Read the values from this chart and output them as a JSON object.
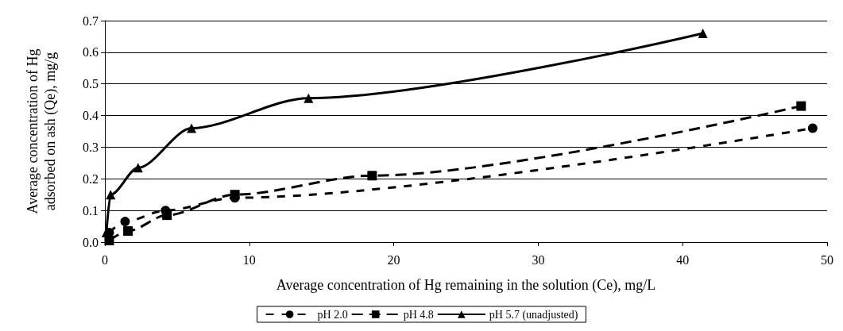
{
  "chart_data": {
    "type": "line",
    "xlabel": "Average concentration of Hg remaining in the solution (Ce), mg/L",
    "ylabel": "Average concentration of Hg\nadsorbed on ash (Qe), mg/g",
    "xlim": [
      0,
      50
    ],
    "xticks": [
      0,
      10,
      20,
      30,
      40,
      50
    ],
    "ylim": [
      0,
      0.7
    ],
    "yticks": [
      {
        "value": 0,
        "label": "0.0"
      },
      0.1,
      0.2,
      0.3,
      0.4,
      0.5,
      0.6,
      0.7
    ],
    "grid": "y",
    "legend": "bottom",
    "series": [
      {
        "name": "pH 2.0",
        "color": "#000000",
        "marker": "circle",
        "line_style": "dotted",
        "x": [
          0.3,
          1.4,
          4.2,
          9,
          49
        ],
        "values": [
          0.03,
          0.065,
          0.1,
          0.14,
          0.36
        ]
      },
      {
        "name": "pH 4.8",
        "color": "#000000",
        "marker": "square",
        "line_style": "dashed",
        "x": [
          0.3,
          1.6,
          4.3,
          9,
          18.5,
          48.2
        ],
        "values": [
          0.005,
          0.035,
          0.085,
          0.15,
          0.21,
          0.43
        ]
      },
      {
        "name": "pH 5.7 (unadjusted)",
        "color": "#000000",
        "marker": "triangle",
        "line_style": "solid",
        "x": [
          0.1,
          0.4,
          2.3,
          6,
          14.1,
          41.4
        ],
        "values": [
          0.03,
          0.15,
          0.235,
          0.36,
          0.455,
          0.66
        ]
      }
    ]
  }
}
